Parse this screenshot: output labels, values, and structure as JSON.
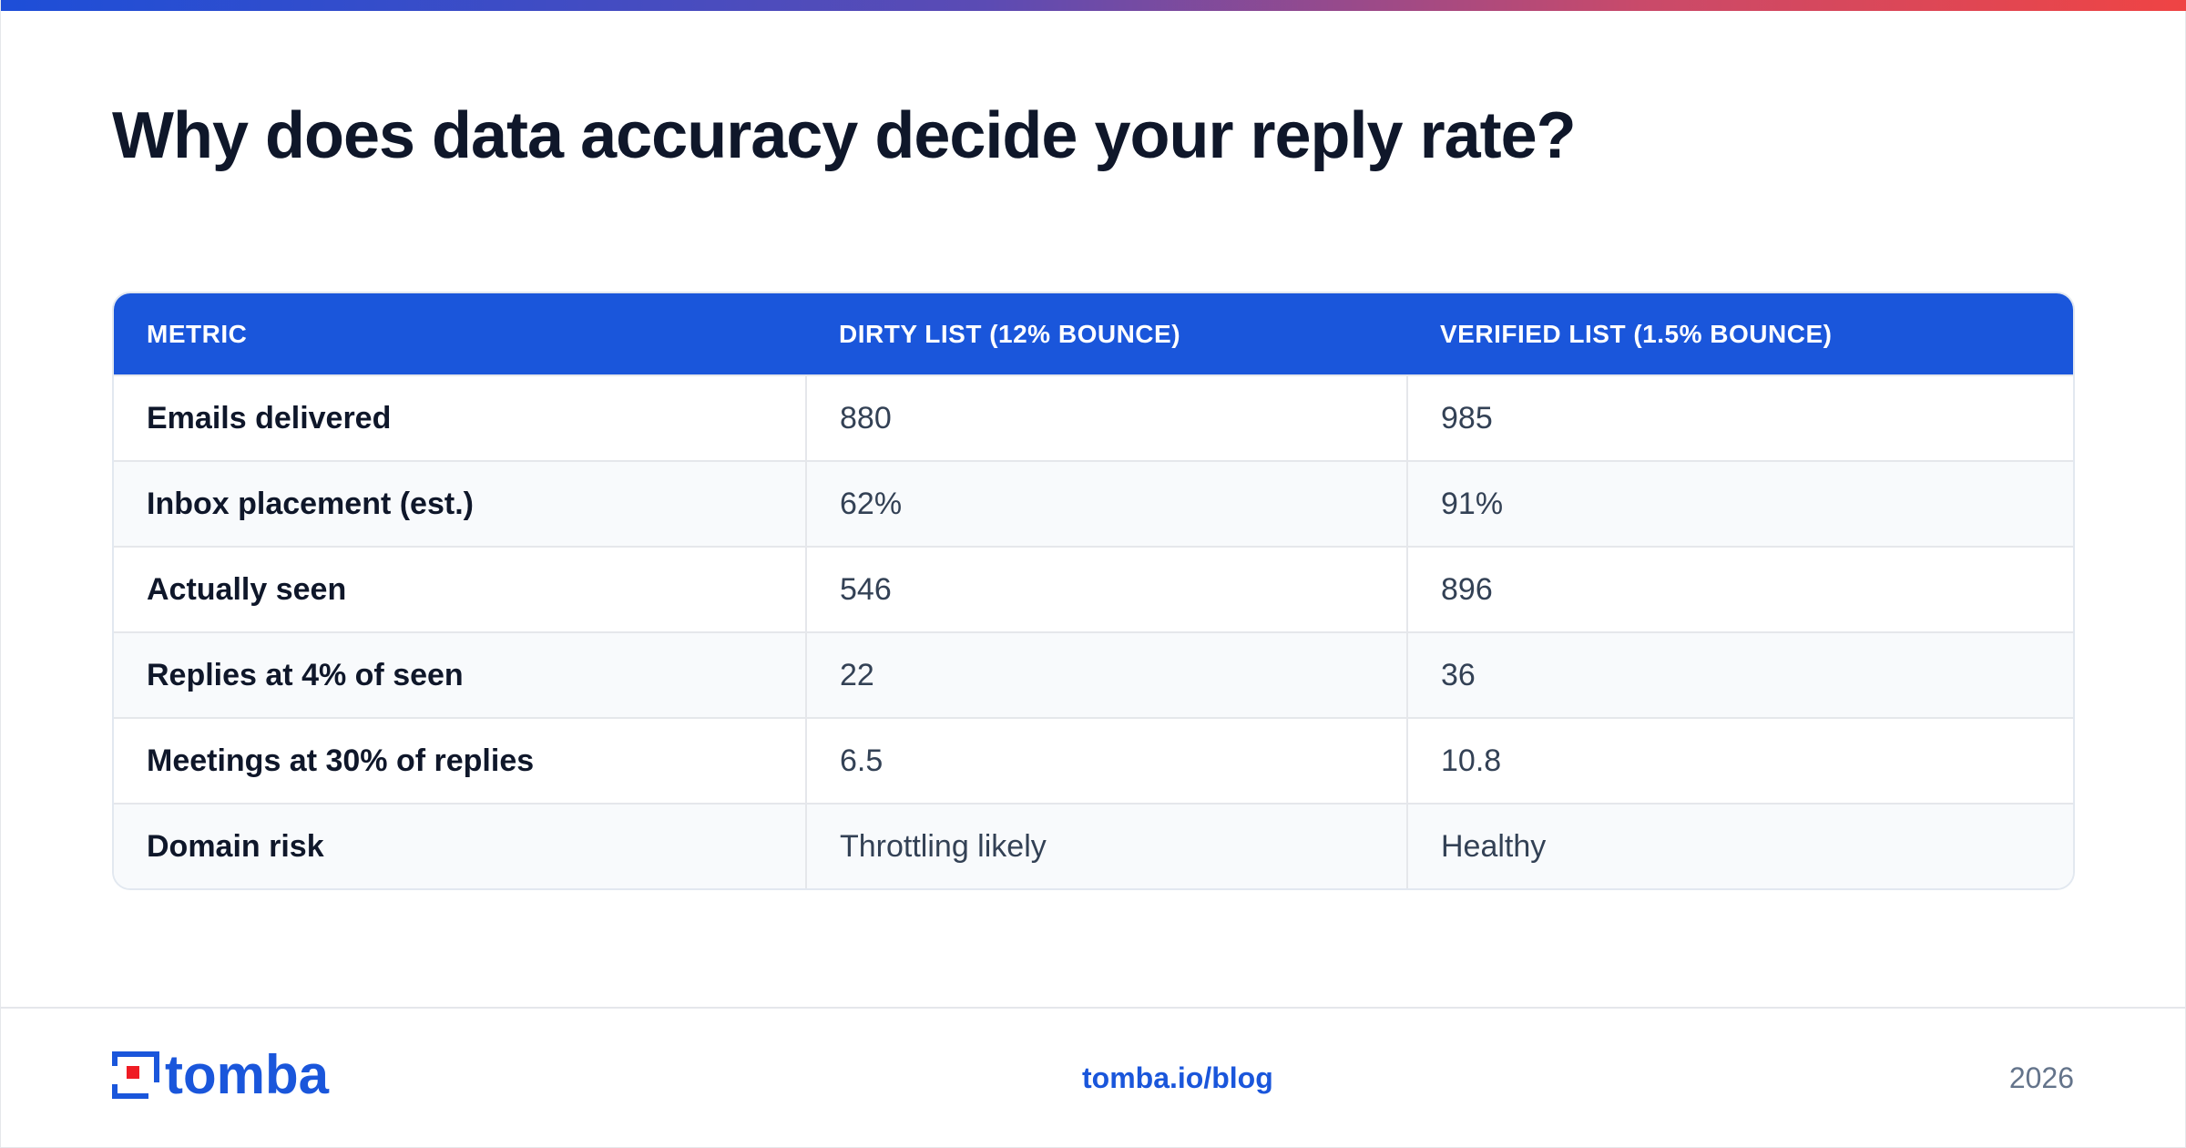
{
  "header": {
    "title": "Why does data accuracy decide your reply rate?"
  },
  "table": {
    "columns": [
      "METRIC",
      "DIRTY LIST (12% BOUNCE)",
      "VERIFIED LIST (1.5% BOUNCE)"
    ],
    "rows": [
      [
        "Emails delivered",
        "880",
        "985"
      ],
      [
        "Inbox placement (est.)",
        "62%",
        "91%"
      ],
      [
        "Actually seen",
        "546",
        "896"
      ],
      [
        "Replies at 4% of seen",
        "22",
        "36"
      ],
      [
        "Meetings at 30% of replies",
        "6.5",
        "10.8"
      ],
      [
        "Domain risk",
        "Throttling likely",
        "Healthy"
      ]
    ]
  },
  "footer": {
    "logo_text": "tomba",
    "link": "tomba.io/blog",
    "year": "2026"
  },
  "colors": {
    "accent": "#1a56db",
    "logo_red": "#ef1c24",
    "title": "#0f172a"
  },
  "icons": {
    "logo_mark": "tomba-logo-icon"
  }
}
